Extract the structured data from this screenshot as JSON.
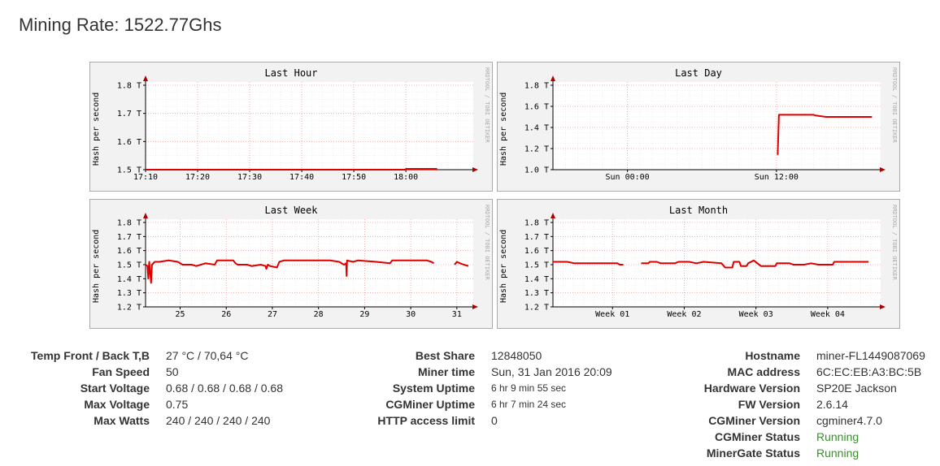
{
  "page": {
    "title": "Mining Rate: 1522.77Ghs"
  },
  "graph_common": {
    "ylabel": "Hash per second",
    "watermark": "RRDTOOL / TOBI OETIKER",
    "line_color": "#dd0000",
    "grid_color": "#ff9999",
    "axis_color": "#000000",
    "arrow_color": "#aa0000"
  },
  "graphs": {
    "hour": {
      "title": "Last Hour"
    },
    "day": {
      "title": "Last Day"
    },
    "week": {
      "title": "Last Week"
    },
    "month": {
      "title": "Last Month"
    }
  },
  "chart_data": [
    {
      "type": "line",
      "title": "Last Hour",
      "ylabel": "Hash per second",
      "x_unit": "minutes since 17:05",
      "xlim": [
        0,
        62
      ],
      "ylim": [
        1.5,
        1.8
      ],
      "yticks": [
        {
          "v": 1.5,
          "label": "1.5 T"
        },
        {
          "v": 1.6,
          "label": "1.6 T"
        },
        {
          "v": 1.7,
          "label": "1.7 T"
        },
        {
          "v": 1.8,
          "label": "1.8 T"
        }
      ],
      "xticks": [
        {
          "v": 0,
          "label": "17:10"
        },
        {
          "v": 10,
          "label": "17:20"
        },
        {
          "v": 20,
          "label": "17:30"
        },
        {
          "v": 30,
          "label": "17:40"
        },
        {
          "v": 40,
          "label": "17:50"
        },
        {
          "v": 50,
          "label": "18:00"
        }
      ],
      "x_minor_grid": 2,
      "y_minor_grid": 0.025,
      "grid": true,
      "series": [
        {
          "segments": [
            [
              [
                0,
                1.5
              ],
              [
                50,
                1.5
              ],
              [
                50,
                1.503
              ],
              [
                56,
                1.503
              ]
            ]
          ]
        }
      ]
    },
    {
      "type": "line",
      "title": "Last Day",
      "ylabel": "Hash per second",
      "x_unit": "hours since Sat 18:00",
      "xlim": [
        0,
        26
      ],
      "ylim": [
        1.0,
        1.8
      ],
      "yticks": [
        {
          "v": 1.0,
          "label": "1.0 T"
        },
        {
          "v": 1.2,
          "label": "1.2 T"
        },
        {
          "v": 1.4,
          "label": "1.4 T"
        },
        {
          "v": 1.6,
          "label": "1.6 T"
        },
        {
          "v": 1.8,
          "label": "1.8 T"
        }
      ],
      "xticks": [
        {
          "v": 6,
          "label": "Sun 00:00"
        },
        {
          "v": 18,
          "label": "Sun 12:00"
        }
      ],
      "x_minor_grid": 1,
      "y_minor_grid": 0.05,
      "grid": true,
      "series": [
        {
          "segments": [
            [
              [
                18.1,
                1.14
              ],
              [
                18.2,
                1.52
              ],
              [
                21.0,
                1.52
              ],
              [
                21.1,
                1.515
              ],
              [
                22.0,
                1.5
              ],
              [
                25.7,
                1.5
              ]
            ]
          ]
        }
      ]
    },
    {
      "type": "line",
      "title": "Last Week",
      "ylabel": "Hash per second",
      "x_unit": "days since Jan 24",
      "xlim": [
        0,
        7
      ],
      "ylim": [
        1.2,
        1.8
      ],
      "yticks": [
        {
          "v": 1.2,
          "label": "1.2 T"
        },
        {
          "v": 1.3,
          "label": "1.3 T"
        },
        {
          "v": 1.4,
          "label": "1.4 T"
        },
        {
          "v": 1.5,
          "label": "1.5 T"
        },
        {
          "v": 1.6,
          "label": "1.6 T"
        },
        {
          "v": 1.7,
          "label": "1.7 T"
        },
        {
          "v": 1.8,
          "label": "1.8 T"
        }
      ],
      "xticks": [
        {
          "v": 0.75,
          "label": "25"
        },
        {
          "v": 1.75,
          "label": "26"
        },
        {
          "v": 2.75,
          "label": "27"
        },
        {
          "v": 3.75,
          "label": "28"
        },
        {
          "v": 4.75,
          "label": "29"
        },
        {
          "v": 5.75,
          "label": "30"
        },
        {
          "v": 6.75,
          "label": "31"
        }
      ],
      "x_minor_grid": 0.25,
      "y_minor_grid": 0.05,
      "grid": true,
      "series": [
        {
          "segments": [
            [
              [
                0.0,
                1.5
              ],
              [
                0.04,
                1.49
              ],
              [
                0.06,
                1.4
              ],
              [
                0.08,
                1.52
              ],
              [
                0.12,
                1.37
              ],
              [
                0.14,
                1.5
              ],
              [
                0.2,
                1.52
              ],
              [
                0.3,
                1.52
              ],
              [
                0.5,
                1.53
              ],
              [
                0.7,
                1.52
              ],
              [
                0.8,
                1.5
              ],
              [
                1.0,
                1.5
              ],
              [
                1.1,
                1.49
              ],
              [
                1.2,
                1.5
              ],
              [
                1.3,
                1.51
              ],
              [
                1.5,
                1.5
              ],
              [
                1.55,
                1.53
              ],
              [
                1.9,
                1.53
              ],
              [
                1.95,
                1.51
              ],
              [
                2.0,
                1.5
              ],
              [
                2.2,
                1.5
              ],
              [
                2.3,
                1.49
              ],
              [
                2.5,
                1.5
              ],
              [
                2.6,
                1.49
              ],
              [
                2.62,
                1.47
              ],
              [
                2.65,
                1.5
              ],
              [
                2.7,
                1.49
              ],
              [
                2.85,
                1.48
              ],
              [
                2.9,
                1.52
              ],
              [
                3.0,
                1.53
              ],
              [
                4.0,
                1.53
              ],
              [
                4.2,
                1.52
              ],
              [
                4.3,
                1.5
              ],
              [
                4.35,
                1.51
              ],
              [
                4.36,
                1.42
              ],
              [
                4.37,
                1.53
              ],
              [
                4.5,
                1.52
              ],
              [
                4.6,
                1.53
              ],
              [
                5.0,
                1.52
              ],
              [
                5.3,
                1.51
              ],
              [
                5.35,
                1.53
              ],
              [
                6.1,
                1.53
              ],
              [
                6.2,
                1.52
              ],
              [
                6.25,
                1.51
              ]
            ],
            [
              [
                6.7,
                1.5
              ],
              [
                6.75,
                1.52
              ],
              [
                6.82,
                1.51
              ],
              [
                6.9,
                1.5
              ],
              [
                7.0,
                1.49
              ]
            ]
          ]
        }
      ]
    },
    {
      "type": "line",
      "title": "Last Month",
      "ylabel": "Hash per second",
      "x_unit": "weeks since Dec 28",
      "xlim": [
        0,
        4.5
      ],
      "ylim": [
        1.2,
        1.8
      ],
      "yticks": [
        {
          "v": 1.2,
          "label": "1.2 T"
        },
        {
          "v": 1.3,
          "label": "1.3 T"
        },
        {
          "v": 1.4,
          "label": "1.4 T"
        },
        {
          "v": 1.5,
          "label": "1.5 T"
        },
        {
          "v": 1.6,
          "label": "1.6 T"
        },
        {
          "v": 1.7,
          "label": "1.7 T"
        },
        {
          "v": 1.8,
          "label": "1.8 T"
        }
      ],
      "xticks": [
        {
          "v": 0.83,
          "label": "Week 01"
        },
        {
          "v": 1.83,
          "label": "Week 02"
        },
        {
          "v": 2.83,
          "label": "Week 03"
        },
        {
          "v": 3.83,
          "label": "Week 04"
        }
      ],
      "x_minor_grid": 0.143,
      "y_minor_grid": 0.05,
      "grid": true,
      "series": [
        {
          "segments": [
            [
              [
                0.0,
                1.52
              ],
              [
                0.2,
                1.52
              ],
              [
                0.3,
                1.51
              ],
              [
                0.9,
                1.51
              ],
              [
                0.93,
                1.5
              ],
              [
                0.98,
                1.5
              ]
            ],
            [
              [
                1.23,
                1.51
              ],
              [
                1.33,
                1.51
              ],
              [
                1.35,
                1.52
              ],
              [
                1.45,
                1.52
              ],
              [
                1.5,
                1.51
              ],
              [
                1.7,
                1.51
              ],
              [
                1.75,
                1.52
              ],
              [
                1.9,
                1.52
              ],
              [
                2.0,
                1.51
              ],
              [
                2.1,
                1.52
              ],
              [
                2.35,
                1.51
              ],
              [
                2.4,
                1.48
              ],
              [
                2.5,
                1.48
              ],
              [
                2.52,
                1.52
              ],
              [
                2.6,
                1.52
              ],
              [
                2.62,
                1.49
              ],
              [
                2.7,
                1.49
              ],
              [
                2.72,
                1.51
              ],
              [
                2.8,
                1.53
              ],
              [
                2.85,
                1.51
              ],
              [
                2.9,
                1.49
              ],
              [
                3.1,
                1.49
              ],
              [
                3.12,
                1.51
              ],
              [
                3.3,
                1.51
              ],
              [
                3.35,
                1.5
              ],
              [
                3.5,
                1.5
              ],
              [
                3.6,
                1.51
              ],
              [
                3.7,
                1.5
              ],
              [
                3.9,
                1.5
              ],
              [
                3.92,
                1.52
              ],
              [
                4.05,
                1.52
              ],
              [
                4.1,
                1.52
              ],
              [
                4.4,
                1.52
              ]
            ]
          ]
        }
      ]
    }
  ],
  "stats": {
    "left": [
      {
        "label": "Temp Front / Back T,B",
        "value": "27 °C / 70,64 °C"
      },
      {
        "label": "Fan Speed",
        "value": "50"
      },
      {
        "label": "Start Voltage",
        "value": "0.68 / 0.68 / 0.68 / 0.68"
      },
      {
        "label": "Max Voltage",
        "value": "0.75"
      },
      {
        "label": "Max Watts",
        "value": "240 / 240 / 240 / 240"
      }
    ],
    "middle": [
      {
        "label": "Best Share",
        "value": "12848050"
      },
      {
        "label": "Miner time",
        "value": "Sun, 31 Jan 2016 20:09"
      },
      {
        "label": "System Uptime",
        "value": "6 hr 9 min 55 sec"
      },
      {
        "label": "CGMiner Uptime",
        "value": "6 hr 7 min 24 sec"
      },
      {
        "label": "HTTP access limit",
        "value": "0"
      }
    ],
    "right": [
      {
        "label": "Hostname",
        "value": "miner-FL1449087069"
      },
      {
        "label": "MAC address",
        "value": "6C:EC:EB:A3:BC:5B"
      },
      {
        "label": "Hardware Version",
        "value": "SP20E Jackson"
      },
      {
        "label": "FW Version",
        "value": "2.6.14"
      },
      {
        "label": "CGMiner Version",
        "value": "cgminer4.7.0"
      },
      {
        "label": "CGMiner Status",
        "value": "Running"
      },
      {
        "label": "MinerGate Status",
        "value": "Running"
      }
    ],
    "status_ok_color": "#3c8d2f"
  }
}
